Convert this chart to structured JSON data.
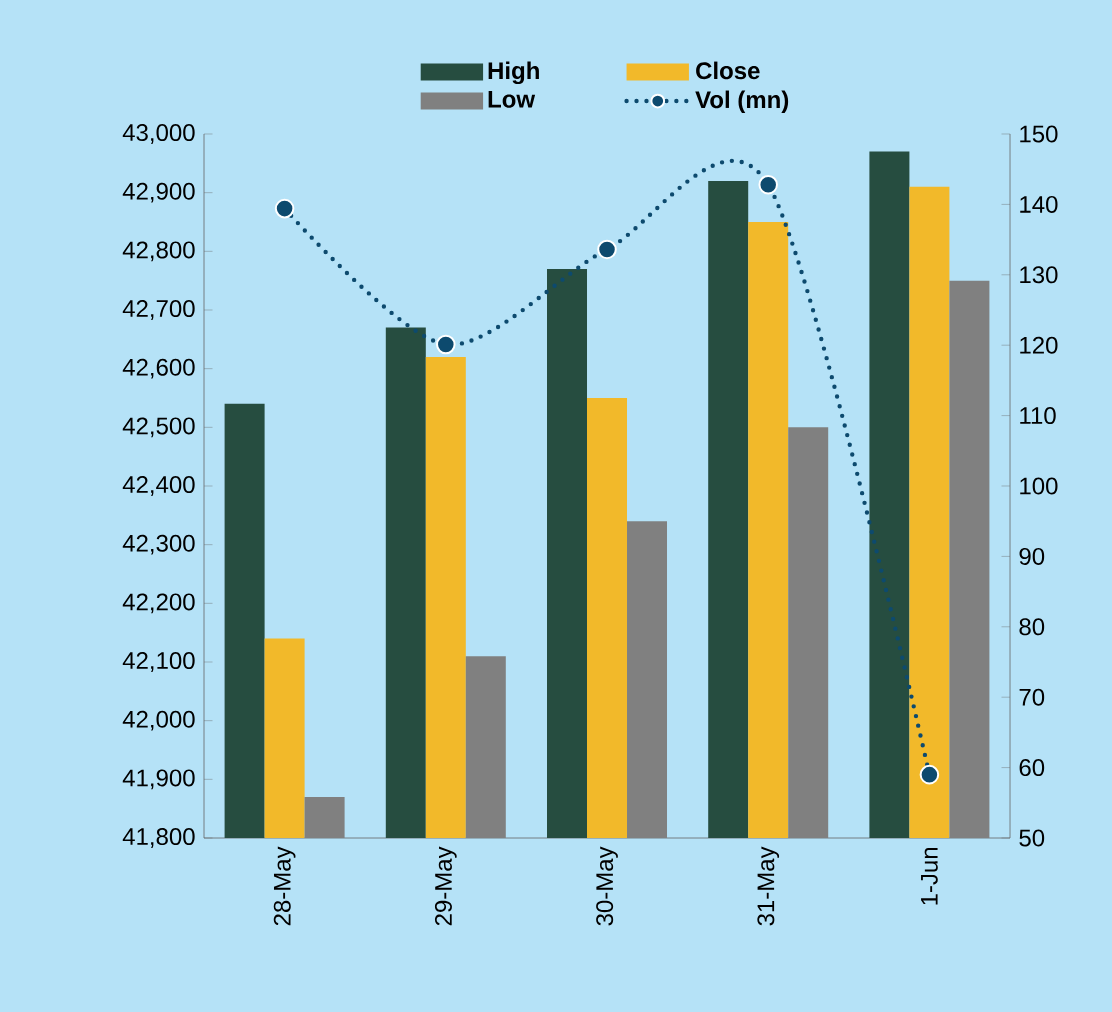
{
  "chart_data": {
    "type": "bar",
    "categories": [
      "28-May",
      "29-May",
      "30-May",
      "31-May",
      "1-Jun"
    ],
    "series": [
      {
        "name": "High",
        "color": "#264d40",
        "values": [
          42540,
          42670,
          42770,
          42920,
          42970
        ]
      },
      {
        "name": "Close",
        "color": "#f2b92a",
        "values": [
          42140,
          42620,
          42550,
          42850,
          42910
        ]
      },
      {
        "name": "Low",
        "color": "#808080",
        "values": [
          41870,
          42110,
          42340,
          42500,
          42750
        ]
      },
      {
        "name": "Vol (mn)",
        "color": "#0d4a6e",
        "type": "line",
        "axis": "y2",
        "marker": "circle",
        "line_style": "dotted",
        "values": [
          139.4,
          120.1,
          133.6,
          142.8,
          59.0
        ]
      }
    ],
    "ylim": [
      41800,
      43000
    ],
    "yticks": [
      {
        "value": 41800,
        "label": "41,800"
      },
      {
        "value": 41900,
        "label": "41,900"
      },
      {
        "value": 42000,
        "label": "42,000"
      },
      {
        "value": 42100,
        "label": "42,100"
      },
      {
        "value": 42200,
        "label": "42,200"
      },
      {
        "value": 42300,
        "label": "42,300"
      },
      {
        "value": 42400,
        "label": "42,400"
      },
      {
        "value": 42500,
        "label": "42,500"
      },
      {
        "value": 42600,
        "label": "42,600"
      },
      {
        "value": 42700,
        "label": "42,700"
      },
      {
        "value": 42800,
        "label": "42,800"
      },
      {
        "value": 42900,
        "label": "42,900"
      },
      {
        "value": 43000,
        "label": "43,000"
      }
    ],
    "y2lim": [
      50,
      150
    ],
    "y2ticks": [
      50,
      60,
      70,
      80,
      90,
      100,
      110,
      120,
      130,
      140,
      150
    ],
    "legend": "top",
    "grid": false
  }
}
